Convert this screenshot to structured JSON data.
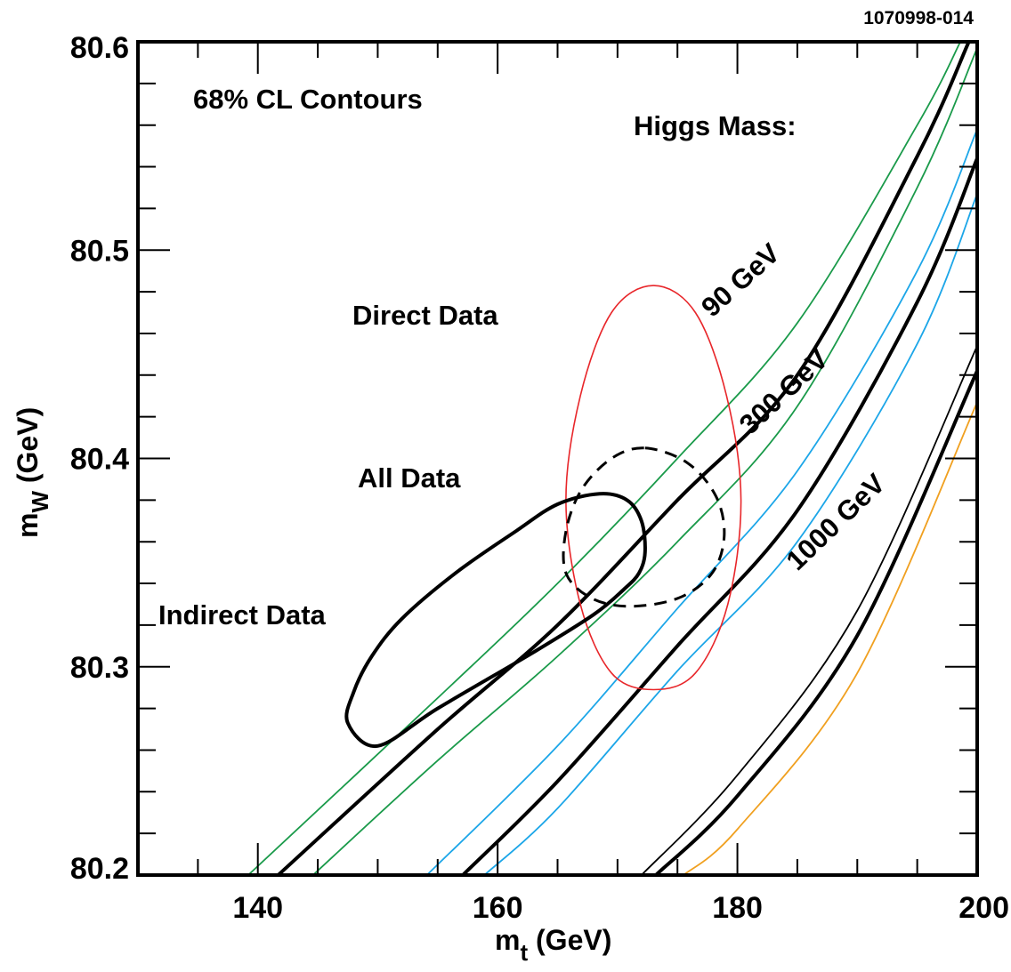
{
  "figure_id": "1070998-014",
  "colors": {
    "higgs_90": "#1a9a4a",
    "higgs_300": "#1ca6e8",
    "higgs_1000": "#f0a020",
    "direct": "#e8262a",
    "black": "#000000"
  },
  "chart_data": {
    "type": "line",
    "title": "",
    "xlabel": {
      "main": "m",
      "sub": "t",
      "unit": " (GeV)"
    },
    "ylabel": {
      "main": "m",
      "sub": "W",
      "unit": " (GeV)"
    },
    "xlim": [
      130,
      200
    ],
    "ylim": [
      80.2,
      80.6
    ],
    "x_ticks": [
      140,
      160,
      180,
      200
    ],
    "x_tick_labels": [
      "140",
      "160",
      "180",
      "200"
    ],
    "y_ticks": [
      80.2,
      80.3,
      80.4,
      80.5,
      80.6
    ],
    "y_tick_labels": [
      "80.2",
      "80.3",
      "80.4",
      "80.5",
      "80.6"
    ],
    "grid": false,
    "annotations": {
      "cl": "68% CL  Contours",
      "higgs_header": "Higgs  Mass:",
      "direct": "Direct  Data",
      "all": "All  Data",
      "indirect": "Indirect  Data",
      "h90": "90  GeV",
      "h300": "300  GeV",
      "h1000": "1000  GeV"
    },
    "bands": [
      {
        "higgs_label": "90  GeV",
        "center": [
          [
            141.7,
            80.2
          ],
          [
            155,
            80.27
          ],
          [
            165,
            80.32
          ],
          [
            175,
            80.38
          ],
          [
            185,
            80.44
          ],
          [
            195,
            80.545
          ],
          [
            199.3,
            80.6
          ]
        ],
        "upper": [
          [
            139.2,
            80.2
          ],
          [
            155,
            80.285
          ],
          [
            165,
            80.34
          ],
          [
            175,
            80.4
          ],
          [
            185,
            80.465
          ],
          [
            195,
            80.56
          ],
          [
            198.6,
            80.6
          ]
        ],
        "lower": [
          [
            144.6,
            80.2
          ],
          [
            155,
            80.255
          ],
          [
            165,
            80.305
          ],
          [
            175,
            80.36
          ],
          [
            185,
            80.425
          ],
          [
            195,
            80.53
          ],
          [
            200,
            80.597
          ]
        ]
      },
      {
        "higgs_label": "300  GeV",
        "center": [
          [
            157.1,
            80.2
          ],
          [
            165,
            80.245
          ],
          [
            175,
            80.31
          ],
          [
            185,
            80.375
          ],
          [
            195,
            80.475
          ],
          [
            200,
            80.544
          ]
        ],
        "upper": [
          [
            154.1,
            80.2
          ],
          [
            165,
            80.262
          ],
          [
            175,
            80.328
          ],
          [
            185,
            80.394
          ],
          [
            195,
            80.49
          ],
          [
            200,
            80.558
          ]
        ],
        "lower": [
          [
            158.9,
            80.2
          ],
          [
            165,
            80.232
          ],
          [
            175,
            80.298
          ],
          [
            185,
            80.36
          ],
          [
            195,
            80.455
          ],
          [
            200,
            80.527
          ]
        ]
      },
      {
        "higgs_label": "1000  GeV",
        "center": [
          [
            173.2,
            80.2
          ],
          [
            180,
            80.238
          ],
          [
            190,
            80.315
          ],
          [
            200,
            80.442
          ]
        ],
        "upper": [
          [
            172.0,
            80.2
          ],
          [
            180,
            80.248
          ],
          [
            190,
            80.327
          ],
          [
            200,
            80.454
          ]
        ],
        "lower": [
          [
            175.5,
            80.2
          ],
          [
            180,
            80.222
          ],
          [
            190,
            80.297
          ],
          [
            200,
            80.427
          ]
        ]
      }
    ],
    "contours": [
      {
        "name": "Direct  Data",
        "style": "red-thin",
        "points": [
          [
            173.0,
            80.483
          ],
          [
            176.5,
            80.47
          ],
          [
            179.1,
            80.43
          ],
          [
            180.3,
            80.38
          ],
          [
            179.2,
            80.33
          ],
          [
            176.5,
            80.297
          ],
          [
            173.0,
            80.289
          ],
          [
            169.5,
            80.297
          ],
          [
            166.9,
            80.33
          ],
          [
            165.7,
            80.38
          ],
          [
            166.9,
            80.43
          ],
          [
            169.5,
            80.47
          ]
        ]
      },
      {
        "name": "All  Data",
        "style": "black-dashed",
        "points": [
          [
            172.3,
            80.405
          ],
          [
            175.8,
            80.398
          ],
          [
            178.2,
            80.382
          ],
          [
            178.9,
            80.363
          ],
          [
            177.9,
            80.345
          ],
          [
            175.1,
            80.333
          ],
          [
            171.0,
            80.329
          ],
          [
            167.8,
            80.333
          ],
          [
            165.7,
            80.345
          ],
          [
            165.7,
            80.365
          ],
          [
            167.0,
            80.385
          ],
          [
            169.5,
            80.4
          ]
        ]
      },
      {
        "name": "Indirect  Data",
        "style": "black-thick",
        "points": [
          [
            168.5,
            80.383
          ],
          [
            170.8,
            80.38
          ],
          [
            172.0,
            80.37
          ],
          [
            172.3,
            80.355
          ],
          [
            171.8,
            80.345
          ],
          [
            170.5,
            80.337
          ],
          [
            168.0,
            80.325
          ],
          [
            163.0,
            80.307
          ],
          [
            155.0,
            80.28
          ],
          [
            150.0,
            80.262
          ],
          [
            147.5,
            80.273
          ],
          [
            148.0,
            80.288
          ],
          [
            149.5,
            80.305
          ],
          [
            152.0,
            80.323
          ],
          [
            156.5,
            80.345
          ],
          [
            161.5,
            80.365
          ],
          [
            165.0,
            80.378
          ]
        ]
      }
    ]
  }
}
